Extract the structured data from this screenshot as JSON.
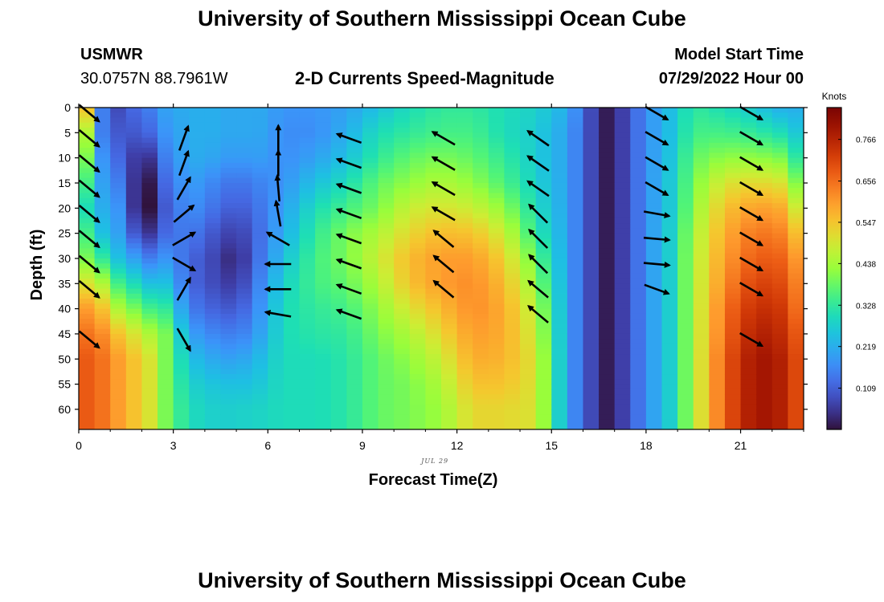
{
  "header": {
    "title": "University of Southern Mississippi Ocean Cube",
    "station": "USMWR",
    "coords": "30.0757N  88.7961W",
    "subtitle": "2-D Currents Speed-Magnitude",
    "model_label": "Model Start Time",
    "model_time": "07/29/2022 Hour 00"
  },
  "footer": {
    "title": "University of Southern Mississippi Ocean Cube"
  },
  "chart_data": {
    "type": "heatmap",
    "xlabel": "Forecast Time(Z)",
    "ylabel": "Depth (ft)",
    "date_label": "JUL 29",
    "xlim": [
      0,
      23
    ],
    "ylim": [
      0,
      64
    ],
    "y_inverted": true,
    "x_ticks": [
      0,
      3,
      6,
      9,
      12,
      15,
      18,
      21
    ],
    "y_ticks": [
      0,
      5,
      10,
      15,
      20,
      25,
      30,
      35,
      40,
      45,
      50,
      55,
      60
    ],
    "colorbar": {
      "unit": "Knots",
      "range": [
        0.0,
        0.85
      ],
      "ticks": [
        0.109,
        0.219,
        0.328,
        0.438,
        0.547,
        0.656,
        0.766
      ],
      "tick_labels": [
        "0.109",
        "0.219",
        "0.328",
        "0.438",
        "0.547",
        "0.656",
        "0.766"
      ]
    },
    "speed_keyframes": [
      {
        "x": 0.25,
        "v": [
          0.55,
          0.45,
          0.4,
          0.35,
          0.3,
          0.35,
          0.4,
          0.5,
          0.6,
          0.65,
          0.68,
          0.68,
          0.68,
          0.68
        ]
      },
      {
        "x": 0.75,
        "v": [
          0.15,
          0.15,
          0.18,
          0.2,
          0.22,
          0.25,
          0.33,
          0.45,
          0.55,
          0.62,
          0.65,
          0.65,
          0.65,
          0.65
        ]
      },
      {
        "x": 1.25,
        "v": [
          0.08,
          0.1,
          0.12,
          0.15,
          0.18,
          0.2,
          0.25,
          0.35,
          0.45,
          0.55,
          0.6,
          0.6,
          0.6,
          0.6
        ]
      },
      {
        "x": 1.75,
        "v": [
          0.12,
          0.1,
          0.06,
          0.05,
          0.05,
          0.1,
          0.2,
          0.3,
          0.4,
          0.5,
          0.55,
          0.55,
          0.55,
          0.55
        ]
      },
      {
        "x": 2.25,
        "v": [
          0.15,
          0.12,
          0.05,
          0.01,
          0.0,
          0.05,
          0.15,
          0.25,
          0.35,
          0.45,
          0.5,
          0.5,
          0.5,
          0.5
        ]
      },
      {
        "x": 2.75,
        "v": [
          0.2,
          0.18,
          0.15,
          0.12,
          0.1,
          0.12,
          0.18,
          0.25,
          0.33,
          0.4,
          0.4,
          0.4,
          0.4,
          0.4
        ]
      },
      {
        "x": 3.5,
        "v": [
          0.22,
          0.22,
          0.22,
          0.2,
          0.18,
          0.15,
          0.12,
          0.12,
          0.15,
          0.2,
          0.25,
          0.28,
          0.3,
          0.3
        ]
      },
      {
        "x": 4.5,
        "v": [
          0.22,
          0.22,
          0.2,
          0.15,
          0.12,
          0.08,
          0.06,
          0.07,
          0.1,
          0.15,
          0.2,
          0.25,
          0.27,
          0.27
        ]
      },
      {
        "x": 5.0,
        "v": [
          0.2,
          0.2,
          0.18,
          0.13,
          0.1,
          0.06,
          0.02,
          0.05,
          0.1,
          0.15,
          0.2,
          0.25,
          0.28,
          0.28
        ]
      },
      {
        "x": 5.5,
        "v": [
          0.22,
          0.22,
          0.2,
          0.15,
          0.12,
          0.1,
          0.1,
          0.12,
          0.14,
          0.17,
          0.22,
          0.25,
          0.28,
          0.28
        ]
      },
      {
        "x": 6.5,
        "v": [
          0.18,
          0.17,
          0.17,
          0.18,
          0.2,
          0.22,
          0.25,
          0.28,
          0.3,
          0.3,
          0.3,
          0.3,
          0.3,
          0.3
        ]
      },
      {
        "x": 7.5,
        "v": [
          0.18,
          0.17,
          0.2,
          0.25,
          0.3,
          0.33,
          0.35,
          0.35,
          0.33,
          0.32,
          0.3,
          0.3,
          0.3,
          0.3
        ]
      },
      {
        "x": 8.5,
        "v": [
          0.2,
          0.22,
          0.25,
          0.3,
          0.35,
          0.4,
          0.4,
          0.38,
          0.35,
          0.33,
          0.32,
          0.32,
          0.32,
          0.32
        ]
      },
      {
        "x": 9.5,
        "v": [
          0.25,
          0.3,
          0.33,
          0.38,
          0.4,
          0.45,
          0.48,
          0.45,
          0.42,
          0.4,
          0.38,
          0.38,
          0.38,
          0.38
        ]
      },
      {
        "x": 10.5,
        "v": [
          0.3,
          0.33,
          0.38,
          0.42,
          0.48,
          0.52,
          0.56,
          0.55,
          0.5,
          0.45,
          0.42,
          0.4,
          0.4,
          0.4
        ]
      },
      {
        "x": 11.5,
        "v": [
          0.33,
          0.35,
          0.4,
          0.45,
          0.5,
          0.56,
          0.6,
          0.6,
          0.56,
          0.52,
          0.48,
          0.45,
          0.43,
          0.43
        ]
      },
      {
        "x": 12.5,
        "v": [
          0.33,
          0.35,
          0.38,
          0.42,
          0.48,
          0.55,
          0.6,
          0.62,
          0.62,
          0.6,
          0.58,
          0.55,
          0.52,
          0.52
        ]
      },
      {
        "x": 13.5,
        "v": [
          0.3,
          0.3,
          0.33,
          0.36,
          0.42,
          0.48,
          0.53,
          0.56,
          0.58,
          0.58,
          0.57,
          0.55,
          0.52,
          0.52
        ]
      },
      {
        "x": 14.5,
        "v": [
          0.28,
          0.27,
          0.27,
          0.28,
          0.3,
          0.33,
          0.38,
          0.42,
          0.46,
          0.48,
          0.5,
          0.5,
          0.5,
          0.5
        ]
      },
      {
        "x": 15.5,
        "v": [
          0.22,
          0.2,
          0.2,
          0.2,
          0.2,
          0.2,
          0.2,
          0.2,
          0.2,
          0.2,
          0.2,
          0.2,
          0.2,
          0.2
        ]
      },
      {
        "x": 16.3,
        "v": [
          0.07,
          0.07,
          0.07,
          0.07,
          0.07,
          0.07,
          0.07,
          0.07,
          0.07,
          0.07,
          0.07,
          0.07,
          0.07,
          0.07
        ]
      },
      {
        "x": 16.8,
        "v": [
          0.01,
          0.01,
          0.01,
          0.01,
          0.01,
          0.01,
          0.01,
          0.01,
          0.01,
          0.01,
          0.01,
          0.01,
          0.01,
          0.01
        ]
      },
      {
        "x": 17.3,
        "v": [
          0.07,
          0.07,
          0.07,
          0.07,
          0.07,
          0.07,
          0.07,
          0.07,
          0.07,
          0.07,
          0.07,
          0.07,
          0.07,
          0.07
        ]
      },
      {
        "x": 18.0,
        "v": [
          0.17,
          0.17,
          0.17,
          0.17,
          0.17,
          0.17,
          0.17,
          0.17,
          0.17,
          0.17,
          0.17,
          0.17,
          0.17,
          0.17
        ]
      },
      {
        "x": 18.8,
        "v": [
          0.25,
          0.25,
          0.26,
          0.27,
          0.27,
          0.28,
          0.28,
          0.28,
          0.28,
          0.28,
          0.28,
          0.28,
          0.28,
          0.28
        ]
      },
      {
        "x": 19.5,
        "v": [
          0.33,
          0.35,
          0.38,
          0.4,
          0.42,
          0.44,
          0.45,
          0.45,
          0.45,
          0.45,
          0.45,
          0.45,
          0.45,
          0.45
        ]
      },
      {
        "x": 20.5,
        "v": [
          0.3,
          0.35,
          0.42,
          0.5,
          0.55,
          0.58,
          0.6,
          0.62,
          0.65,
          0.66,
          0.68,
          0.68,
          0.68,
          0.68
        ]
      },
      {
        "x": 21.5,
        "v": [
          0.26,
          0.33,
          0.42,
          0.52,
          0.6,
          0.65,
          0.68,
          0.72,
          0.75,
          0.78,
          0.8,
          0.8,
          0.8,
          0.8
        ]
      },
      {
        "x": 22.3,
        "v": [
          0.22,
          0.3,
          0.4,
          0.5,
          0.58,
          0.63,
          0.67,
          0.7,
          0.73,
          0.75,
          0.77,
          0.77,
          0.77,
          0.77
        ]
      },
      {
        "x": 22.8,
        "v": [
          0.22,
          0.26,
          0.32,
          0.4,
          0.48,
          0.55,
          0.6,
          0.63,
          0.65,
          0.68,
          0.7,
          0.7,
          0.7,
          0.7
        ]
      }
    ],
    "speed_depths": [
      0,
      5,
      10,
      15,
      20,
      25,
      30,
      35,
      40,
      45,
      50,
      55,
      60,
      64
    ],
    "vectors": {
      "times": [
        0,
        3,
        6,
        8.25,
        11.25,
        14.25,
        18,
        21
      ],
      "depths": [
        0,
        5,
        10,
        15,
        20,
        25,
        30,
        35,
        40,
        45
      ],
      "deg_from_east": [
        [
          -40,
          -40,
          -40,
          -40,
          -40,
          -40,
          -40,
          -40,
          null,
          -40
        ],
        [
          null,
          70,
          70,
          60,
          40,
          30,
          -30,
          60,
          null,
          -60
        ],
        [
          null,
          90,
          90,
          95,
          100,
          150,
          180,
          180,
          170,
          null
        ],
        [
          null,
          160,
          160,
          160,
          160,
          160,
          160,
          160,
          160,
          null
        ],
        [
          null,
          150,
          150,
          150,
          150,
          140,
          140,
          140,
          null,
          null
        ],
        [
          null,
          145,
          145,
          145,
          135,
          135,
          135,
          140,
          140,
          null
        ],
        [
          -30,
          -30,
          -30,
          -30,
          -10,
          -5,
          -5,
          -20,
          null,
          null
        ],
        [
          -30,
          -30,
          -30,
          -30,
          -30,
          -30,
          -30,
          -30,
          null,
          -30
        ]
      ]
    }
  }
}
